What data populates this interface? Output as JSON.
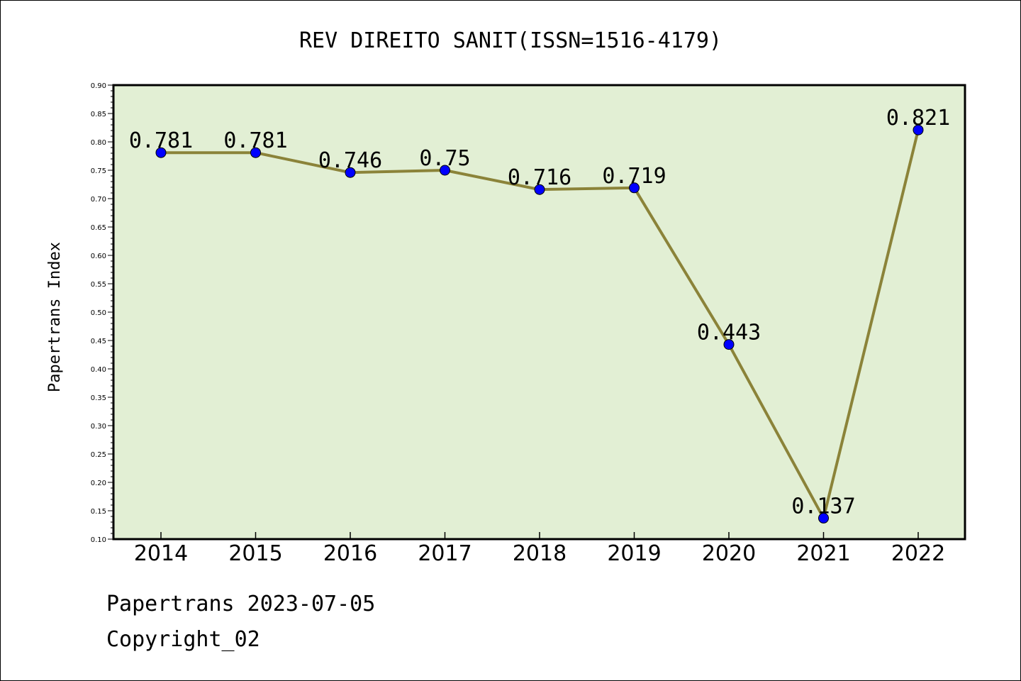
{
  "chart_data": {
    "type": "line",
    "title": "REV DIREITO SANIT(ISSN=1516-4179)",
    "ylabel": "Papertrans Index",
    "xlabel": "",
    "categories": [
      "2014",
      "2015",
      "2016",
      "2017",
      "2018",
      "2019",
      "2020",
      "2021",
      "2022"
    ],
    "values": [
      0.781,
      0.781,
      0.746,
      0.75,
      0.716,
      0.719,
      0.443,
      0.137,
      0.821
    ],
    "data_labels": [
      "0.781",
      "0.781",
      "0.746",
      "0.75",
      "0.716",
      "0.719",
      "0.443",
      "0.137",
      "0.821"
    ],
    "ylim": [
      0.1,
      0.9
    ],
    "yticks": [
      "0.10",
      "0.15",
      "0.20",
      "0.25",
      "0.30",
      "0.35",
      "0.40",
      "0.45",
      "0.50",
      "0.55",
      "0.60",
      "0.65",
      "0.70",
      "0.75",
      "0.80",
      "0.85",
      "0.90"
    ],
    "grid": false,
    "colors": {
      "plot_background": "#e2efd4",
      "line": "#8b8339",
      "marker": "#0000ff"
    }
  },
  "footer": {
    "line1": "Papertrans 2023-07-05",
    "line2": "Copyright_02"
  }
}
